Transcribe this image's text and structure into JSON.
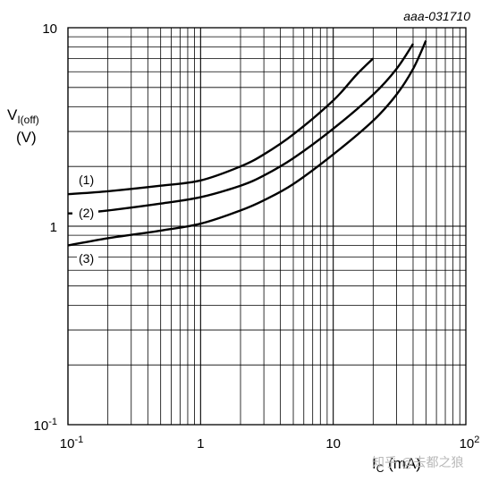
{
  "chart_data": {
    "type": "line",
    "code_label": "aaa-031710",
    "ylabel": {
      "main": "V",
      "sub": "I(off)",
      "unit": "(V)"
    },
    "xlabel": {
      "main": "I",
      "sub": "C",
      "unit": " (mA)"
    },
    "x_scale": "log",
    "y_scale": "log",
    "xlim": [
      0.1,
      100
    ],
    "ylim": [
      0.1,
      10
    ],
    "grid": true,
    "x_ticks": [
      {
        "base": "10",
        "exp": "-1"
      },
      {
        "base": "1",
        "exp": ""
      },
      {
        "base": "10",
        "exp": ""
      },
      {
        "base": "10",
        "exp": "2"
      }
    ],
    "y_ticks": [
      {
        "base": "10",
        "exp": "-1"
      },
      {
        "base": "1",
        "exp": ""
      },
      {
        "base": "10",
        "exp": ""
      }
    ],
    "series": [
      {
        "name": "(1)",
        "x": [
          0.1,
          0.2,
          0.5,
          1,
          2,
          3,
          5,
          10,
          15,
          20
        ],
        "y": [
          1.45,
          1.5,
          1.6,
          1.7,
          2.0,
          2.3,
          2.9,
          4.3,
          5.8,
          7.0
        ]
      },
      {
        "name": "(2)",
        "x": [
          0.13,
          0.2,
          0.5,
          1,
          2,
          3,
          5,
          10,
          20,
          30,
          40
        ],
        "y": [
          1.17,
          1.2,
          1.3,
          1.4,
          1.6,
          1.8,
          2.2,
          3.1,
          4.6,
          6.2,
          8.3
        ]
      },
      {
        "name": "(3)",
        "x": [
          0.1,
          0.2,
          0.5,
          1,
          2,
          3,
          5,
          10,
          20,
          30,
          40,
          50
        ],
        "y": [
          0.8,
          0.87,
          0.95,
          1.03,
          1.2,
          1.35,
          1.63,
          2.3,
          3.4,
          4.6,
          6.2,
          8.6
        ]
      }
    ]
  },
  "watermark": "知乎 @去都之狼"
}
